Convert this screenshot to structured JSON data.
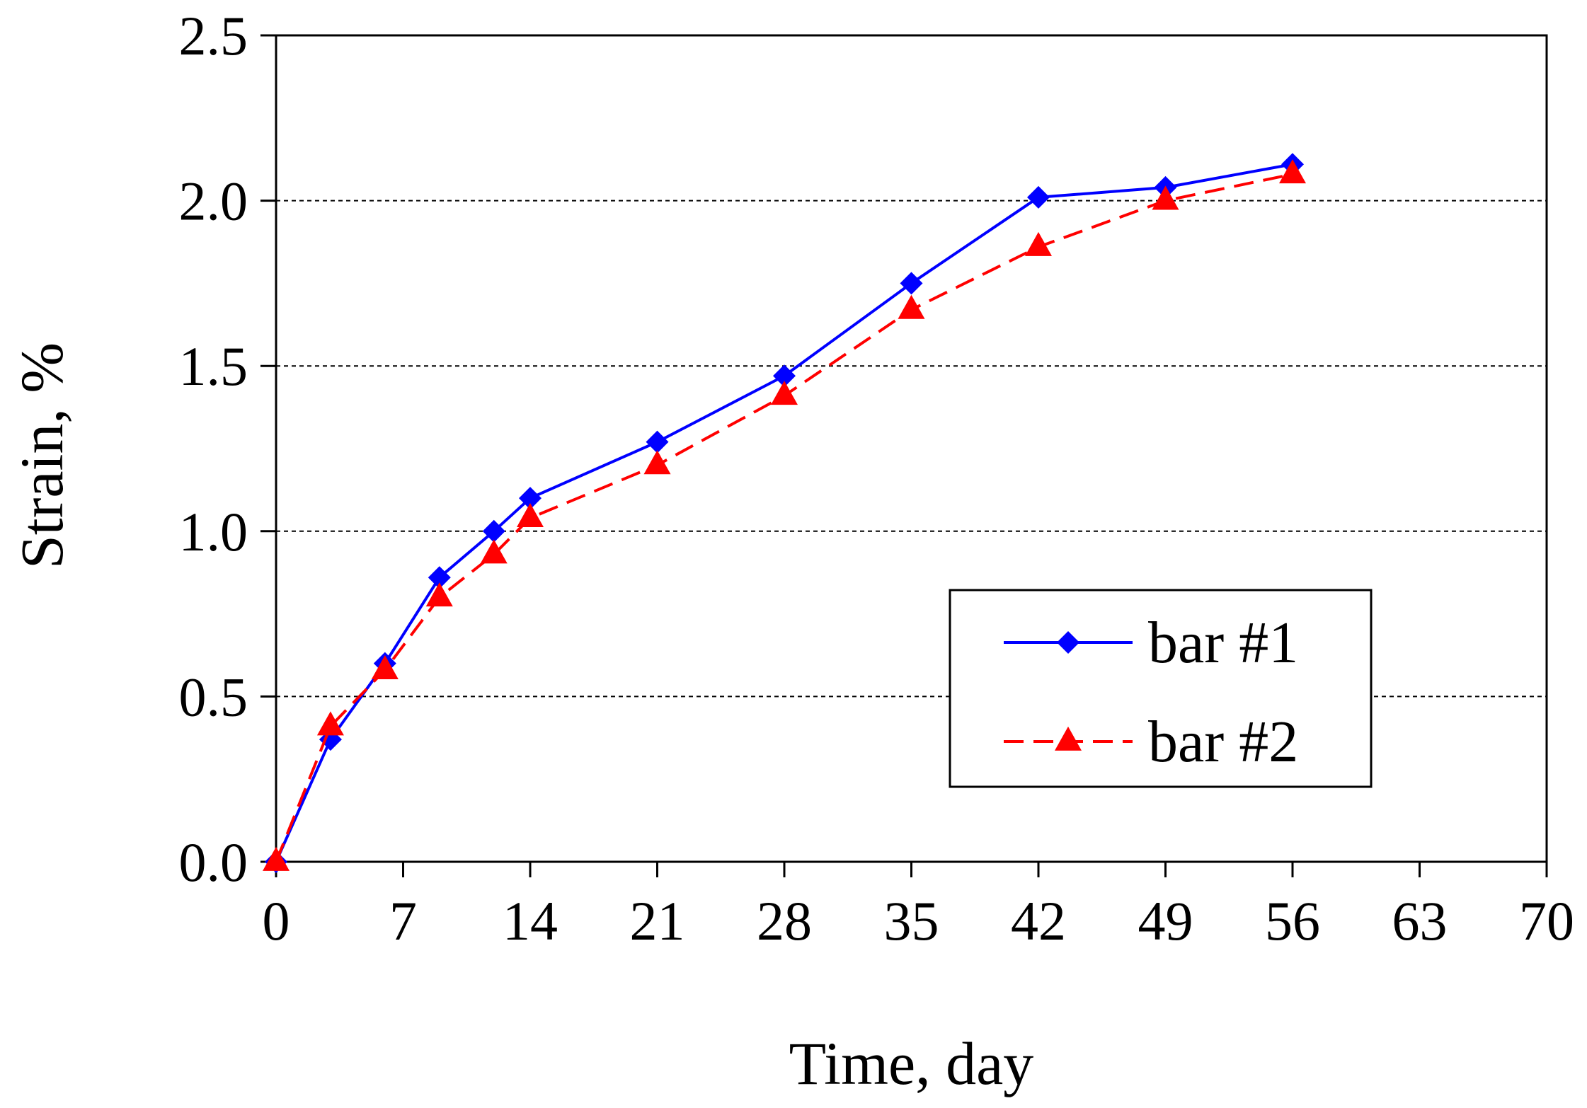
{
  "chart_data": {
    "type": "line",
    "title": "",
    "xlabel": "Time, day",
    "ylabel": "Strain, %",
    "xlim": [
      0,
      70
    ],
    "ylim": [
      0,
      2.5
    ],
    "x_ticks": [
      "0",
      "7",
      "14",
      "21",
      "28",
      "35",
      "42",
      "49",
      "56",
      "63",
      "70"
    ],
    "y_ticks": [
      "0.0",
      "0.5",
      "1.0",
      "1.5",
      "2.0",
      "2.5"
    ],
    "grid": "horizontal dashed gridlines",
    "legend_position": "lower-right",
    "series": [
      {
        "name": "bar #1",
        "color": "#0000ff",
        "line_style": "solid",
        "marker": "diamond",
        "x": [
          0,
          3,
          6,
          9,
          12,
          14,
          21,
          28,
          35,
          42,
          49,
          56
        ],
        "y": [
          0.0,
          0.37,
          0.6,
          0.86,
          1.0,
          1.1,
          1.27,
          1.47,
          1.75,
          2.01,
          2.04,
          2.11
        ]
      },
      {
        "name": "bar #2",
        "color": "#ff0000",
        "line_style": "dashed",
        "marker": "triangle",
        "x": [
          0,
          3,
          6,
          9,
          12,
          14,
          21,
          28,
          35,
          42,
          49,
          56
        ],
        "y": [
          0.0,
          0.41,
          0.58,
          0.8,
          0.93,
          1.04,
          1.2,
          1.41,
          1.67,
          1.86,
          2.0,
          2.08
        ]
      }
    ]
  }
}
